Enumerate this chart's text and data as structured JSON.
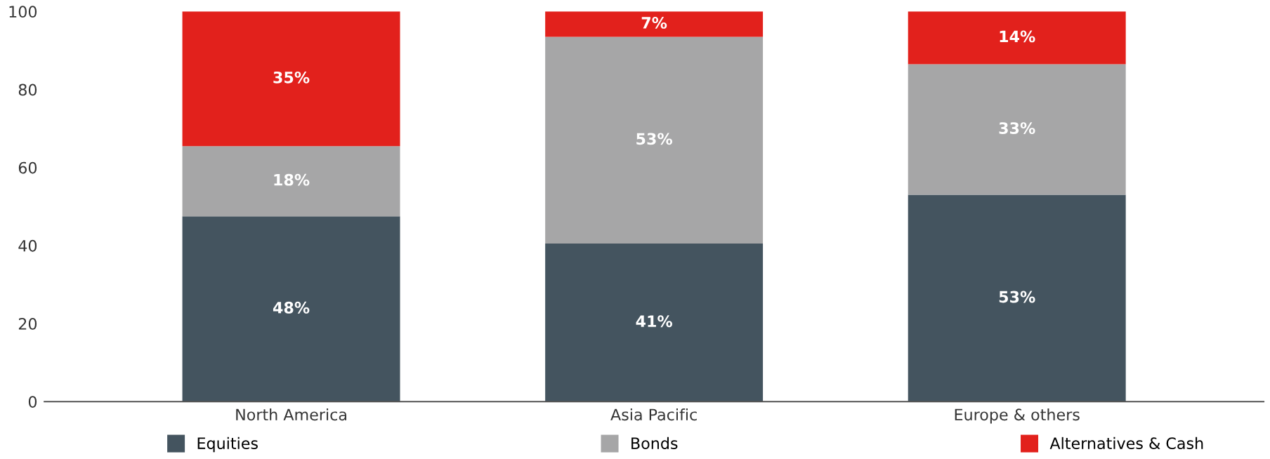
{
  "chart_data": {
    "type": "bar",
    "stacked": true,
    "categories": [
      "North America",
      "Asia Pacific",
      "Europe & others"
    ],
    "series": [
      {
        "name": "Equities",
        "color": "#44545f",
        "values": [
          47.5,
          40.5,
          53
        ],
        "value_labels": [
          "48%",
          "41%",
          "53%"
        ]
      },
      {
        "name": "Bonds",
        "color": "#a6a6a7",
        "values": [
          18,
          53,
          33.5
        ],
        "value_labels": [
          "18%",
          "53%",
          "33%"
        ]
      },
      {
        "name": "Alternatives & Cash",
        "color": "#e2211c",
        "values": [
          34.5,
          6.5,
          13.5
        ],
        "value_labels": [
          "35%",
          "7%",
          "14%"
        ]
      }
    ],
    "ylim": [
      0,
      100
    ],
    "yticks": [
      0,
      20,
      40,
      60,
      80,
      100
    ],
    "grid": false,
    "legend": "bottom left",
    "marker": "square"
  }
}
